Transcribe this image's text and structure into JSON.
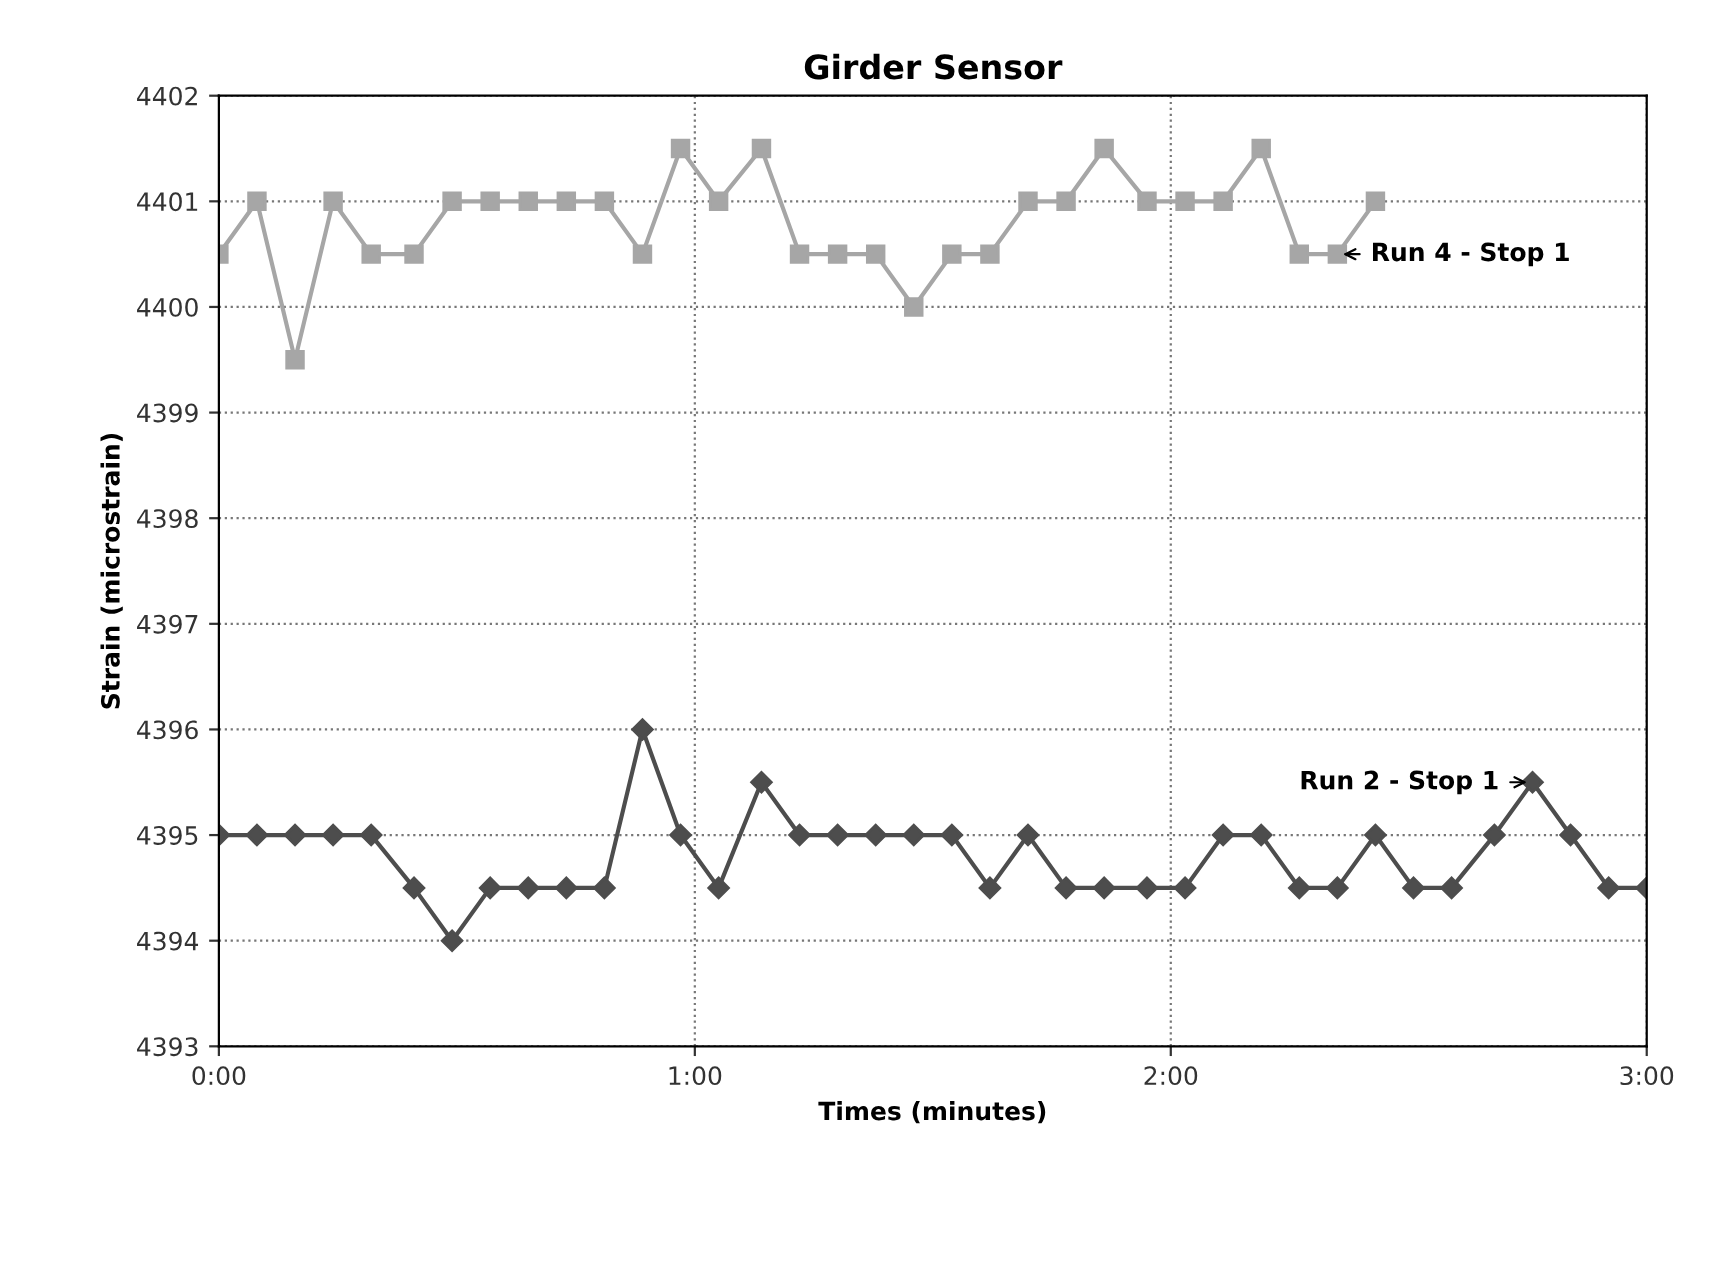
{
  "chart_data": {
    "type": "line",
    "title": "Girder Sensor",
    "xlabel": "Times (minutes)",
    "ylabel": "Strain (microstrain)",
    "xlim": [
      0,
      3
    ],
    "xticks": [
      {
        "value": 0,
        "label": "0:00"
      },
      {
        "value": 1,
        "label": "1:00"
      },
      {
        "value": 2,
        "label": "2:00"
      },
      {
        "value": 3,
        "label": "3:00"
      }
    ],
    "ylim": [
      4393,
      4402
    ],
    "yticks": [
      4393,
      4394,
      4395,
      4396,
      4397,
      4398,
      4399,
      4400,
      4401,
      4402
    ],
    "grid": true,
    "line_style": "solid",
    "series": [
      {
        "color": "#a6a6a6",
        "marker": "square",
        "x": [
          0,
          0.08,
          0.16,
          0.24,
          0.32,
          0.41,
          0.49,
          0.57,
          0.65,
          0.73,
          0.81,
          0.89,
          0.97,
          1.05,
          1.14,
          1.22,
          1.3,
          1.38,
          1.46,
          1.54,
          1.62,
          1.7,
          1.78,
          1.86,
          1.95,
          2.03,
          2.11,
          2.19,
          2.27,
          2.35,
          2.43
        ],
        "values": [
          4400.5,
          4401,
          4399.5,
          4401,
          4400.5,
          4400.5,
          4401,
          4401,
          4401,
          4401,
          4401,
          4400.5,
          4401.5,
          4401,
          4401.5,
          4400.5,
          4400.5,
          4400.5,
          4400,
          4400.5,
          4400.5,
          4401,
          4401,
          4401.5,
          4401,
          4401,
          4401,
          4401.5,
          4400.5,
          4400.5,
          4401
        ]
      },
      {
        "color": "#4d4d4d",
        "marker": "diamond",
        "x": [
          0,
          0.08,
          0.16,
          0.24,
          0.32,
          0.41,
          0.49,
          0.57,
          0.65,
          0.73,
          0.81,
          0.89,
          0.97,
          1.05,
          1.14,
          1.22,
          1.3,
          1.38,
          1.46,
          1.54,
          1.62,
          1.7,
          1.78,
          1.86,
          1.95,
          2.03,
          2.11,
          2.19,
          2.27,
          2.35,
          2.43,
          2.51,
          2.59,
          2.68,
          2.76,
          2.84,
          2.92,
          3.0
        ],
        "values": [
          4395,
          4395,
          4395,
          4395,
          4395,
          4394.5,
          4394,
          4394.5,
          4394.5,
          4394.5,
          4394.5,
          4396,
          4395,
          4394.5,
          4395.5,
          4395,
          4395,
          4395,
          4395,
          4395,
          4394.5,
          4395,
          4394.5,
          4394.5,
          4394.5,
          4394.5,
          4395,
          4395,
          4394.5,
          4394.5,
          4395,
          4394.5,
          4394.5,
          4395,
          4395.5,
          4395,
          4394.5,
          4394.5
        ]
      }
    ],
    "annotations": [
      {
        "text": "Run 4 - Stop 1",
        "x": 2.35,
        "y": 4400.5
      },
      {
        "text": "Run 2 - Stop 1",
        "x": 2.76,
        "y": 4395.5
      }
    ]
  }
}
